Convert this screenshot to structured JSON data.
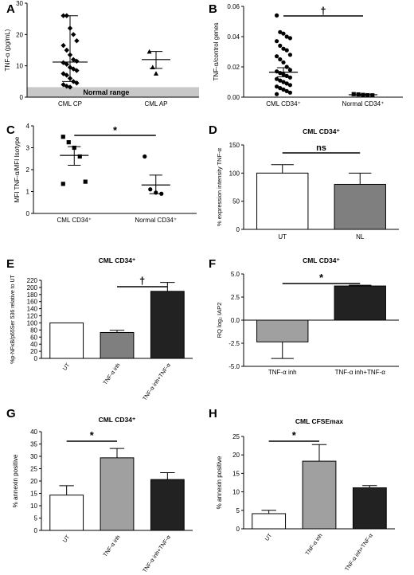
{
  "chart_data": [
    {
      "panel": "A",
      "type": "scatter",
      "title": "",
      "ylabel": "TNF-α (pg/mL)",
      "ylim": [
        0,
        30
      ],
      "yticks": [
        0,
        10,
        20,
        30
      ],
      "categories": [
        "CML CP",
        "CML AP"
      ],
      "band": {
        "label": "Normal range",
        "ymin": 0,
        "ymax": 3.2
      },
      "points": [
        [
          26,
          26,
          22,
          20,
          18,
          16.5,
          15,
          13.5,
          12,
          11.5,
          11,
          10.5,
          9.5,
          9,
          8.5,
          7.5,
          7,
          6,
          5,
          4.5,
          4,
          3.5,
          3.2
        ],
        [
          14.5,
          9.5,
          7.5
        ]
      ],
      "mean": [
        11.2,
        12
      ],
      "err_low": [
        5,
        9.2
      ],
      "err_high": [
        26,
        14.6
      ],
      "significance": ""
    },
    {
      "panel": "B",
      "type": "scatter",
      "title": "",
      "ylabel": "TNF-α/control genes",
      "ylim": [
        0,
        0.06
      ],
      "yticks": [
        0,
        0.02,
        0.04,
        0.06
      ],
      "ytick_labels": [
        "0.00",
        "0.02",
        "0.04",
        "0.06"
      ],
      "categories": [
        "CML CD34⁺",
        "Normal CD34⁺"
      ],
      "points": [
        [
          0.054,
          0.043,
          0.042,
          0.04,
          0.039,
          0.037,
          0.034,
          0.032,
          0.031,
          0.028,
          0.027,
          0.025,
          0.023,
          0.02,
          0.018,
          0.017,
          0.016,
          0.015,
          0.014,
          0.013,
          0.012,
          0.011,
          0.01,
          0.009,
          0.008,
          0.007,
          0.006,
          0.005,
          0.004,
          0.003,
          0.002
        ],
        [
          0.002,
          0.0018,
          0.0015,
          0.0013,
          0.0012
        ]
      ],
      "mean": [
        0.0165,
        0.0016
      ],
      "err_low": [
        0.0135,
        0.0012
      ],
      "err_high": [
        0.0195,
        0.002
      ],
      "significance": "†"
    },
    {
      "panel": "C",
      "type": "scatter",
      "title": "",
      "ylabel": "MFI TNF-α/MFI Isotype",
      "ylim": [
        0,
        4
      ],
      "yticks": [
        0,
        1,
        2,
        3,
        4
      ],
      "categories": [
        "CML  CD34⁺",
        "Normal CD34⁺"
      ],
      "points": [
        [
          3.5,
          3.25,
          3.0,
          2.6,
          1.45,
          1.35
        ],
        [
          2.6,
          1.1,
          0.95,
          0.9
        ]
      ],
      "mean": [
        2.65,
        1.3
      ],
      "err_low": [
        2.2,
        0.9
      ],
      "err_high": [
        3.05,
        1.75
      ],
      "significance": "*"
    },
    {
      "panel": "D",
      "type": "bar",
      "title": "CML CD34⁺",
      "ylabel": "% expression intensity TNF-α",
      "ylim": [
        0,
        150
      ],
      "yticks": [
        0,
        50,
        100,
        150
      ],
      "categories": [
        "UT",
        "NL"
      ],
      "values": [
        100,
        80
      ],
      "errors": [
        15,
        20
      ],
      "colors": [
        "#ffffff",
        "#7f7f7f"
      ],
      "significance": "ns"
    },
    {
      "panel": "E",
      "type": "bar",
      "title": "CML CD34⁺",
      "ylabel": "%p-NFκB/p65Ser 536 relative to UT",
      "ylim": [
        0,
        220
      ],
      "yticks": [
        0,
        20,
        40,
        60,
        80,
        100,
        120,
        140,
        160,
        180,
        200,
        220
      ],
      "categories": [
        "UT",
        "TNF-α inh",
        "TNF-α inh+TNF-α"
      ],
      "values": [
        100,
        73,
        189
      ],
      "errors": [
        0,
        6,
        25
      ],
      "colors": [
        "#ffffff",
        "#7f7f7f",
        "#222222"
      ],
      "significance": "†"
    },
    {
      "panel": "F",
      "type": "bar",
      "title": "CML CD34⁺",
      "ylabel": "RQ log₂ IAP2",
      "ylim": [
        -5,
        5
      ],
      "yticks": [
        -5,
        -2.5,
        0,
        2.5,
        5
      ],
      "ytick_labels": [
        "-5.0",
        "-2.5",
        "0.0",
        "2.5",
        "5.0"
      ],
      "categories": [
        "TNF-α inh",
        "TNF-α inh+TNF-α"
      ],
      "values": [
        -2.35,
        3.7
      ],
      "errors": [
        1.8,
        0.08
      ],
      "colors": [
        "#a0a0a0",
        "#222222"
      ],
      "significance": "*"
    },
    {
      "panel": "G",
      "type": "bar",
      "title": "CML CD34⁺",
      "ylabel": "% annexin positive",
      "ylim": [
        0,
        40
      ],
      "yticks": [
        0,
        5,
        10,
        15,
        20,
        25,
        30,
        35,
        40
      ],
      "categories": [
        "UT",
        "TNF-α inh",
        "TNF-α inh+TNF-α"
      ],
      "values": [
        14.3,
        29.4,
        20.6
      ],
      "errors": [
        3.8,
        3.8,
        2.8
      ],
      "colors": [
        "#ffffff",
        "#a0a0a0",
        "#222222"
      ],
      "significance": "*"
    },
    {
      "panel": "H",
      "type": "bar",
      "title": "CML CFSEmax",
      "ylabel": "% annexin positive",
      "ylim": [
        0,
        25
      ],
      "yticks": [
        0,
        5,
        10,
        15,
        20,
        25
      ],
      "categories": [
        "UT",
        "TNF-α inh",
        "TNF-α inh+TNF-α"
      ],
      "values": [
        4.1,
        18.3,
        11.1
      ],
      "errors": [
        0.9,
        4.5,
        0.6
      ],
      "colors": [
        "#ffffff",
        "#a0a0a0",
        "#222222"
      ],
      "significance": "*"
    }
  ]
}
